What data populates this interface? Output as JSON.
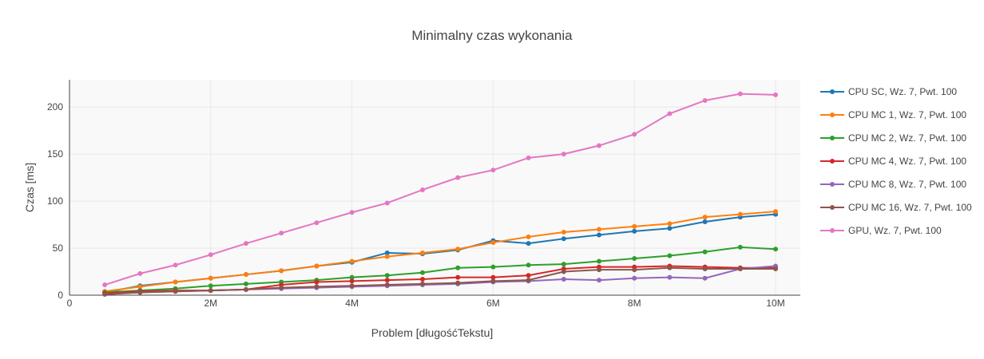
{
  "chart_data": {
    "type": "line",
    "title": "Minimalny czas wykonania",
    "xlabel": "Problem [długośćTekstu]",
    "ylabel": "Czas [ms]",
    "xlim": [
      0,
      10350000
    ],
    "ylim": [
      0,
      229
    ],
    "x_ticks": [
      0,
      2000000,
      4000000,
      6000000,
      8000000,
      10000000
    ],
    "x_tick_labels": [
      "0",
      "2M",
      "4M",
      "6M",
      "8M",
      "10M"
    ],
    "y_ticks": [
      0,
      50,
      100,
      150,
      200
    ],
    "y_tick_labels": [
      "0",
      "50",
      "100",
      "150",
      "200"
    ],
    "grid": true,
    "legend_position": "right",
    "x": [
      500000,
      1000000,
      1500000,
      2000000,
      2500000,
      3000000,
      3500000,
      4000000,
      4500000,
      5000000,
      5500000,
      6000000,
      6500000,
      7000000,
      7500000,
      8000000,
      8500000,
      9000000,
      9500000,
      10000000
    ],
    "series": [
      {
        "name": "CPU SC, Wz. 7, Pwt. 100",
        "color": "#1f77b4",
        "values": [
          3,
          10,
          14,
          18,
          22,
          26,
          31,
          35,
          45,
          44,
          48,
          58,
          55,
          60,
          64,
          68,
          71,
          78,
          83,
          86
        ]
      },
      {
        "name": "CPU MC 1, Wz. 7, Pwt. 100",
        "color": "#ff7f0e",
        "values": [
          4,
          9,
          14,
          18,
          22,
          26,
          31,
          36,
          41,
          45,
          49,
          56,
          62,
          67,
          70,
          73,
          76,
          83,
          86,
          89
        ]
      },
      {
        "name": "CPU MC 2, Wz. 7, Pwt. 100",
        "color": "#2ca02c",
        "values": [
          3,
          5,
          7,
          10,
          12,
          14,
          16,
          19,
          21,
          24,
          29,
          30,
          32,
          33,
          36,
          39,
          42,
          46,
          51,
          49
        ]
      },
      {
        "name": "CPU MC 4, Wz. 7, Pwt. 100",
        "color": "#d62728",
        "values": [
          2,
          4,
          5,
          5,
          6,
          11,
          14,
          15,
          16,
          17,
          19,
          19,
          21,
          28,
          30,
          30,
          31,
          30,
          29,
          29
        ]
      },
      {
        "name": "CPU MC 8, Wz. 7, Pwt. 100",
        "color": "#9467bd",
        "values": [
          1,
          3,
          4,
          5,
          6,
          7,
          8,
          9,
          10,
          11,
          12,
          14,
          15,
          17,
          16,
          18,
          19,
          18,
          28,
          31
        ]
      },
      {
        "name": "CPU MC 16, Wz. 7, Pwt. 100",
        "color": "#8c564b",
        "values": [
          1,
          3,
          4,
          5,
          6,
          8,
          9,
          10,
          11,
          12,
          13,
          15,
          16,
          25,
          27,
          27,
          29,
          28,
          28,
          28
        ]
      },
      {
        "name": "GPU, Wz. 7, Pwt. 100",
        "color": "#e377c2",
        "values": [
          11,
          23,
          32,
          43,
          55,
          66,
          77,
          88,
          98,
          112,
          125,
          133,
          146,
          150,
          159,
          171,
          193,
          207,
          214,
          213
        ]
      }
    ]
  }
}
